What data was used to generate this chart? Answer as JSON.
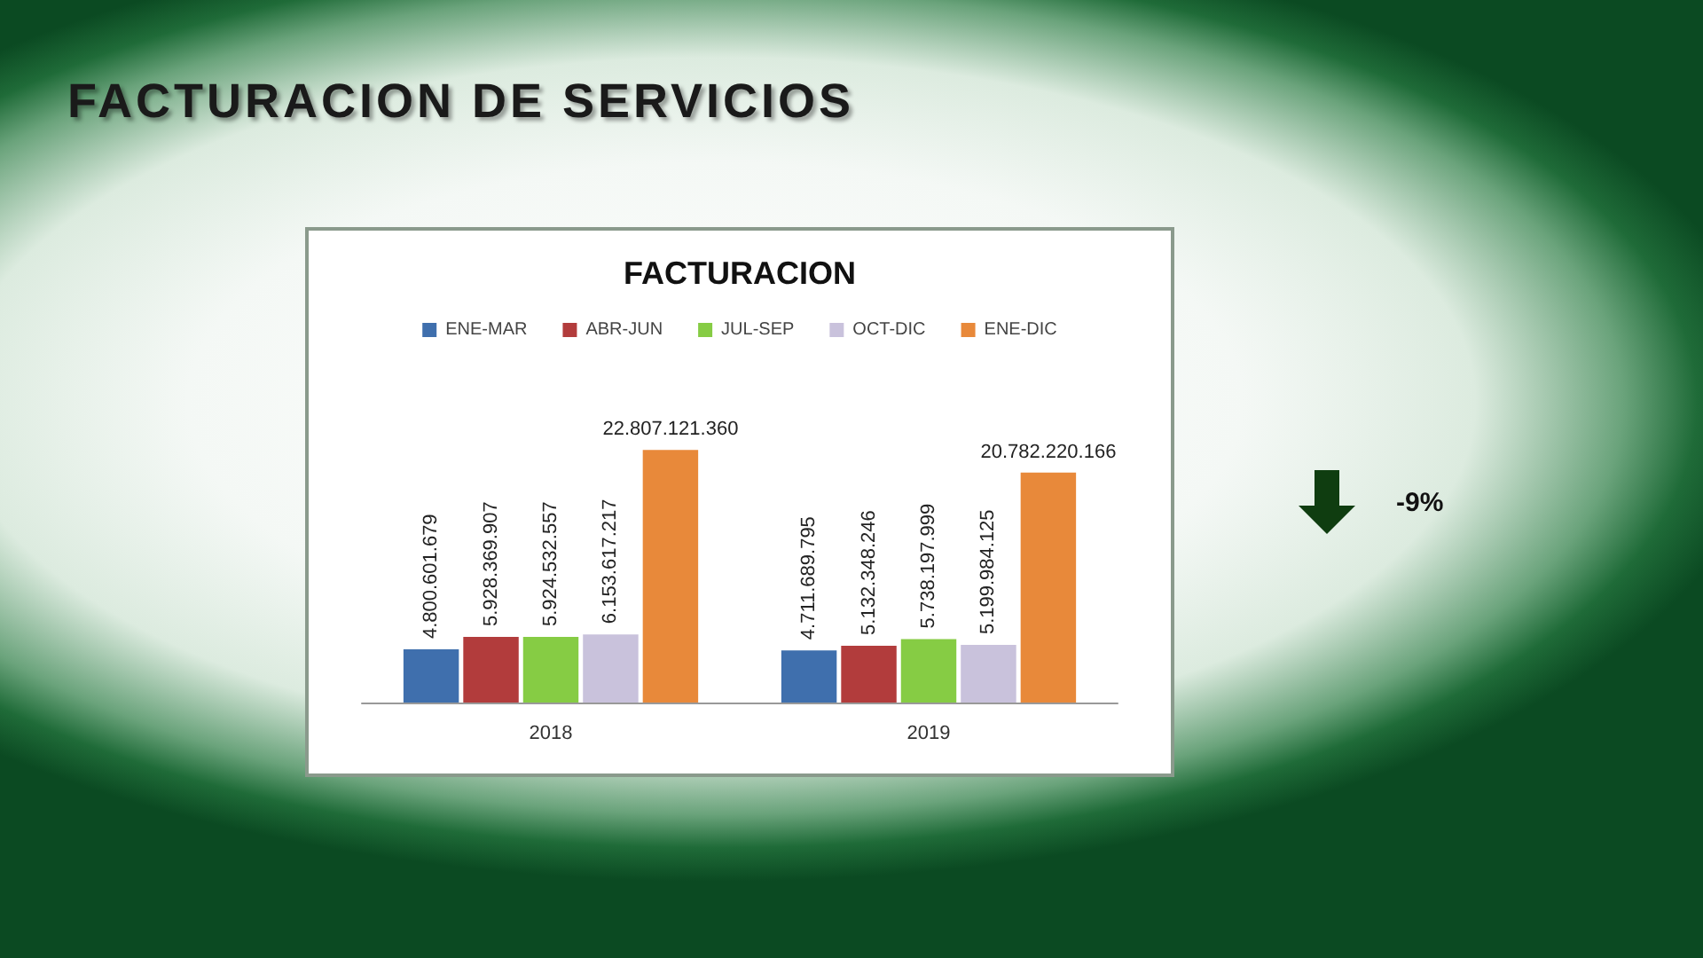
{
  "chart_data": {
    "type": "bar",
    "title": "FACTURACION DE SERVICIOS",
    "subtitle": "FACTURACION",
    "categories": [
      "2018",
      "2019"
    ],
    "series": [
      {
        "name": "ENE-MAR",
        "color": "#3f6fad",
        "values": [
          4800601679,
          4711689795
        ],
        "value_labels": [
          "4.800.601.679",
          "4.711.689.795"
        ]
      },
      {
        "name": "ABR-JUN",
        "color": "#b23c3c",
        "values": [
          5928369907,
          5132348246
        ],
        "value_labels": [
          "5.928.369.907",
          "5.132.348.246"
        ]
      },
      {
        "name": "JUL-SEP",
        "color": "#86cc44",
        "values": [
          5924532557,
          5738197999
        ],
        "value_labels": [
          "5.924.532.557",
          "5.738.197.999"
        ]
      },
      {
        "name": "OCT-DIC",
        "color": "#c9c2dc",
        "values": [
          6153617217,
          5199984125
        ],
        "value_labels": [
          "6.153.617.217",
          "5.199.984.125"
        ]
      },
      {
        "name": "ENE-DIC",
        "color": "#e8893a",
        "values": [
          22807121360,
          20782220166
        ],
        "value_labels": [
          "22.807.121.360",
          "20.782.220.166"
        ]
      }
    ],
    "legend": "top",
    "grid": false,
    "annotations": [
      "-9%"
    ]
  }
}
